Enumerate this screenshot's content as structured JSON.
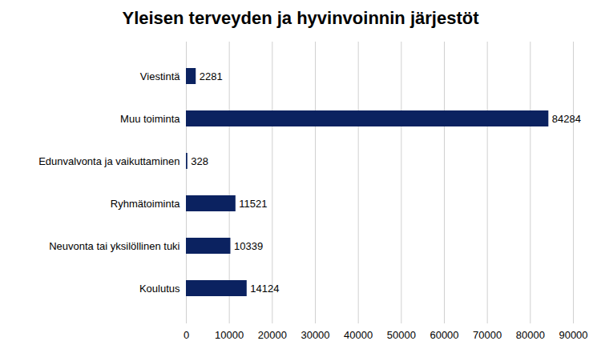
{
  "chart_data": {
    "type": "bar",
    "title": "Yleisen terveyden ja hyvinvoinnin järjestöt",
    "categories": [
      "Viestintä",
      "Muu toiminta",
      "Edunvalvonta ja vaikuttaminen",
      "Ryhmätoiminta",
      "Neuvonta tai yksilöllinen tuki",
      "Koulutus"
    ],
    "values": [
      2281,
      84284,
      328,
      11521,
      10339,
      14124
    ],
    "color": "#0b2260",
    "orientation": "horizontal",
    "xlim": [
      0,
      90000
    ],
    "xticks": [
      0,
      10000,
      20000,
      30000,
      40000,
      50000,
      60000,
      70000,
      80000,
      90000
    ],
    "grid": true,
    "data_labels": true
  }
}
